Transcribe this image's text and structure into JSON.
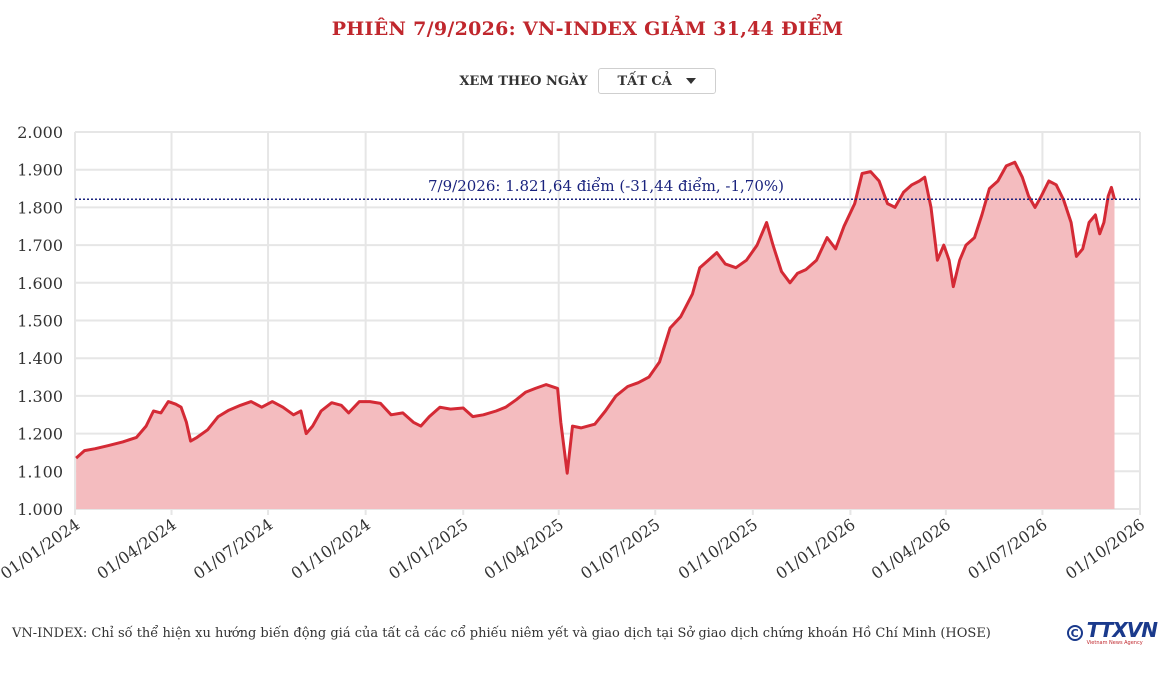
{
  "header": {
    "title": "PHIÊN 7/9/2026: VN-INDEX GIẢM 31,44 ĐIỂM"
  },
  "filter": {
    "label": "XEM THEO NGÀY",
    "selected": "TẤT CẢ"
  },
  "footer": {
    "note": "VN-INDEX: Chỉ số thể hiện xu hướng biến động giá của tất cả các cổ phiếu niêm yết và giao dịch tại Sở giao dịch chứng khoán Hồ Chí Minh (HOSE)",
    "logo_text": "TTXVN",
    "logo_sub": "Vietnam News Agency"
  },
  "colors": {
    "line": "#d42a35",
    "fill": "#f4bcbf",
    "title": "#c0272d",
    "reference": "#1a237e",
    "grid": "#e6e6e6"
  },
  "chart_data": {
    "type": "area",
    "title": "PHIÊN 7/9/2026: VN-INDEX GIẢM 31,44 ĐIỂM",
    "xlabel": "",
    "ylabel": "",
    "xlim": [
      "2024-01-01",
      "2026-10-01"
    ],
    "ylim": [
      1000,
      2000
    ],
    "grid": true,
    "y_ticks": [
      1000,
      1100,
      1200,
      1300,
      1400,
      1500,
      1600,
      1700,
      1800,
      1900,
      2000
    ],
    "y_tick_labels": [
      "1.000",
      "1.100",
      "1.200",
      "1.300",
      "1.400",
      "1.500",
      "1.600",
      "1.700",
      "1.800",
      "1.900",
      "2.000"
    ],
    "x_ticks": [
      "2024-01-01",
      "2024-04-01",
      "2024-07-01",
      "2024-10-01",
      "2025-01-01",
      "2025-04-01",
      "2025-07-01",
      "2025-10-01",
      "2026-01-01",
      "2026-04-01",
      "2026-07-01",
      "2026-10-01"
    ],
    "x_tick_labels": [
      "01/01/2024",
      "01/04/2024",
      "01/07/2024",
      "01/10/2024",
      "01/01/2025",
      "01/04/2025",
      "01/07/2025",
      "01/10/2025",
      "01/01/2026",
      "01/04/2026",
      "01/07/2026",
      "01/10/2026"
    ],
    "reference_line": {
      "value": 1821.64,
      "label": "7/9/2026: 1.821,64 điểm (-31,44 điểm, -1,70%)"
    },
    "series": [
      {
        "points": [
          [
            "2024-01-02",
            1135
          ],
          [
            "2024-01-10",
            1155
          ],
          [
            "2024-01-20",
            1160
          ],
          [
            "2024-02-01",
            1168
          ],
          [
            "2024-02-15",
            1178
          ],
          [
            "2024-02-28",
            1190
          ],
          [
            "2024-03-08",
            1220
          ],
          [
            "2024-03-15",
            1260
          ],
          [
            "2024-03-22",
            1255
          ],
          [
            "2024-03-29",
            1285
          ],
          [
            "2024-04-05",
            1278
          ],
          [
            "2024-04-10",
            1270
          ],
          [
            "2024-04-15",
            1230
          ],
          [
            "2024-04-19",
            1180
          ],
          [
            "2024-04-25",
            1190
          ],
          [
            "2024-05-05",
            1210
          ],
          [
            "2024-05-15",
            1245
          ],
          [
            "2024-05-25",
            1262
          ],
          [
            "2024-06-05",
            1275
          ],
          [
            "2024-06-15",
            1285
          ],
          [
            "2024-06-25",
            1270
          ],
          [
            "2024-07-05",
            1285
          ],
          [
            "2024-07-15",
            1270
          ],
          [
            "2024-07-25",
            1250
          ],
          [
            "2024-08-01",
            1260
          ],
          [
            "2024-08-06",
            1200
          ],
          [
            "2024-08-12",
            1220
          ],
          [
            "2024-08-20",
            1260
          ],
          [
            "2024-08-30",
            1282
          ],
          [
            "2024-09-08",
            1275
          ],
          [
            "2024-09-15",
            1255
          ],
          [
            "2024-09-25",
            1285
          ],
          [
            "2024-10-05",
            1285
          ],
          [
            "2024-10-15",
            1280
          ],
          [
            "2024-10-25",
            1250
          ],
          [
            "2024-11-05",
            1255
          ],
          [
            "2024-11-15",
            1230
          ],
          [
            "2024-11-22",
            1220
          ],
          [
            "2024-11-30",
            1245
          ],
          [
            "2024-12-10",
            1270
          ],
          [
            "2024-12-20",
            1265
          ],
          [
            "2025-01-01",
            1268
          ],
          [
            "2025-01-10",
            1245
          ],
          [
            "2025-01-20",
            1250
          ],
          [
            "2025-02-01",
            1260
          ],
          [
            "2025-02-10",
            1270
          ],
          [
            "2025-02-20",
            1290
          ],
          [
            "2025-03-01",
            1310
          ],
          [
            "2025-03-10",
            1320
          ],
          [
            "2025-03-20",
            1330
          ],
          [
            "2025-03-31",
            1320
          ],
          [
            "2025-04-03",
            1230
          ],
          [
            "2025-04-09",
            1095
          ],
          [
            "2025-04-14",
            1220
          ],
          [
            "2025-04-22",
            1215
          ],
          [
            "2025-05-05",
            1225
          ],
          [
            "2025-05-15",
            1260
          ],
          [
            "2025-05-25",
            1300
          ],
          [
            "2025-06-05",
            1325
          ],
          [
            "2025-06-15",
            1335
          ],
          [
            "2025-06-25",
            1350
          ],
          [
            "2025-07-05",
            1390
          ],
          [
            "2025-07-15",
            1480
          ],
          [
            "2025-07-25",
            1510
          ],
          [
            "2025-08-05",
            1570
          ],
          [
            "2025-08-12",
            1640
          ],
          [
            "2025-08-20",
            1660
          ],
          [
            "2025-08-28",
            1680
          ],
          [
            "2025-09-05",
            1650
          ],
          [
            "2025-09-15",
            1640
          ],
          [
            "2025-09-25",
            1660
          ],
          [
            "2025-10-05",
            1700
          ],
          [
            "2025-10-14",
            1760
          ],
          [
            "2025-10-20",
            1700
          ],
          [
            "2025-10-28",
            1630
          ],
          [
            "2025-11-05",
            1600
          ],
          [
            "2025-11-12",
            1625
          ],
          [
            "2025-11-20",
            1635
          ],
          [
            "2025-11-30",
            1660
          ],
          [
            "2025-12-10",
            1720
          ],
          [
            "2025-12-18",
            1690
          ],
          [
            "2025-12-26",
            1750
          ],
          [
            "2026-01-05",
            1810
          ],
          [
            "2026-01-12",
            1890
          ],
          [
            "2026-01-20",
            1895
          ],
          [
            "2026-01-28",
            1870
          ],
          [
            "2026-02-05",
            1810
          ],
          [
            "2026-02-12",
            1800
          ],
          [
            "2026-02-20",
            1840
          ],
          [
            "2026-02-28",
            1860
          ],
          [
            "2026-03-07",
            1870
          ],
          [
            "2026-03-12",
            1880
          ],
          [
            "2026-03-18",
            1800
          ],
          [
            "2026-03-24",
            1660
          ],
          [
            "2026-03-30",
            1700
          ],
          [
            "2026-04-04",
            1660
          ],
          [
            "2026-04-08",
            1590
          ],
          [
            "2026-04-14",
            1660
          ],
          [
            "2026-04-20",
            1700
          ],
          [
            "2026-04-28",
            1720
          ],
          [
            "2026-05-05",
            1780
          ],
          [
            "2026-05-12",
            1850
          ],
          [
            "2026-05-20",
            1870
          ],
          [
            "2026-05-28",
            1910
          ],
          [
            "2026-06-05",
            1920
          ],
          [
            "2026-06-12",
            1880
          ],
          [
            "2026-06-18",
            1830
          ],
          [
            "2026-06-24",
            1800
          ],
          [
            "2026-06-30",
            1830
          ],
          [
            "2026-07-07",
            1870
          ],
          [
            "2026-07-14",
            1860
          ],
          [
            "2026-07-21",
            1820
          ],
          [
            "2026-07-28",
            1760
          ],
          [
            "2026-08-02",
            1670
          ],
          [
            "2026-08-08",
            1690
          ],
          [
            "2026-08-14",
            1760
          ],
          [
            "2026-08-20",
            1780
          ],
          [
            "2026-08-24",
            1730
          ],
          [
            "2026-08-28",
            1760
          ],
          [
            "2026-09-01",
            1830
          ],
          [
            "2026-09-04",
            1853
          ],
          [
            "2026-09-07",
            1821.64
          ]
        ]
      }
    ]
  }
}
